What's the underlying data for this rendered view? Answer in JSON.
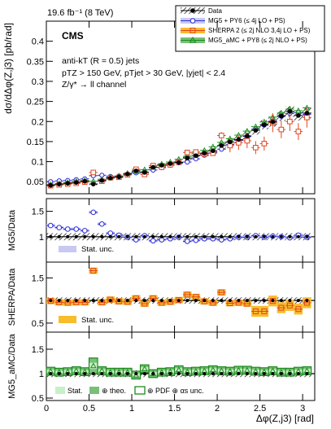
{
  "lumi_label": "19.6 fb⁻¹ (8 TeV)",
  "cms_label": "CMS",
  "text_lines": [
    "anti-kT (R = 0.5) jets",
    "pTZ > 150 GeV, pTjet > 30 GeV, |yjet| < 2.4",
    "Z/γ* → ll channel"
  ],
  "legend": {
    "data": "Data",
    "mg5": "MG5 + PY6 (≤ 4j LO + PS)",
    "sherpa": "SHERPA 2 (≤ 2j NLO 3,4j LO + PS)",
    "amc": "MG5_aMC + PY8 (≤ 2j NLO + PS)"
  },
  "colors": {
    "data": "#000000",
    "mg5": "#2b2bd6",
    "mg5_band": "#c8c8f2",
    "sherpa": "#e2451e",
    "sherpa_band": "#f7bd2c",
    "amc": "#1c8a1c",
    "amc_stat": "#c8f0c8",
    "amc_theo": "#78c078"
  },
  "chart_data": [
    {
      "type": "scatter",
      "xlabel": "",
      "ylabel": "dσ/dΔφ(Z,j3) [pb/rad]",
      "ylim": [
        0.02,
        0.45
      ],
      "xlim": [
        0,
        3.14159
      ],
      "yticks": [
        "0.05",
        "0.1",
        "0.15",
        "0.2",
        "0.25",
        "0.3",
        "0.35",
        "0.4"
      ],
      "x": [
        0.05,
        0.15,
        0.25,
        0.35,
        0.45,
        0.55,
        0.65,
        0.75,
        0.85,
        0.95,
        1.05,
        1.15,
        1.25,
        1.35,
        1.45,
        1.55,
        1.65,
        1.75,
        1.85,
        1.95,
        2.05,
        2.15,
        2.25,
        2.35,
        2.45,
        2.55,
        2.65,
        2.75,
        2.85,
        2.95,
        3.05
      ],
      "series": [
        {
          "name": "Data",
          "values": [
            0.041,
            0.044,
            0.046,
            0.048,
            0.051,
            0.044,
            0.053,
            0.059,
            0.062,
            0.069,
            0.077,
            0.073,
            0.086,
            0.091,
            0.095,
            0.098,
            0.109,
            0.115,
            0.121,
            0.127,
            0.14,
            0.149,
            0.155,
            0.164,
            0.178,
            0.192,
            0.199,
            0.214,
            0.225,
            0.215,
            0.221
          ]
        },
        {
          "name": "MG5 + PY6 (≤ 4j LO + PS)",
          "values": [
            0.05,
            0.052,
            0.053,
            0.055,
            0.057,
            0.065,
            0.066,
            0.063,
            0.064,
            0.068,
            0.072,
            0.074,
            0.079,
            0.085,
            0.091,
            0.097,
            0.099,
            0.107,
            0.116,
            0.122,
            0.131,
            0.143,
            0.153,
            0.163,
            0.181,
            0.191,
            0.201,
            0.213,
            0.22,
            0.222,
            0.218
          ]
        },
        {
          "name": "SHERPA 2 (≤ 2j NLO 3,4j LO + PS)",
          "values": [
            0.04,
            0.042,
            0.044,
            0.046,
            0.049,
            0.073,
            0.051,
            0.06,
            0.061,
            0.067,
            0.081,
            0.068,
            0.09,
            0.086,
            0.092,
            0.099,
            0.123,
            0.124,
            0.119,
            0.121,
            0.165,
            0.14,
            0.147,
            0.152,
            0.135,
            0.145,
            0.197,
            0.18,
            0.2,
            0.175,
            0.21
          ]
        },
        {
          "name": "MG5_aMC + PY8 (≤ 2j NLO + PS)",
          "values": [
            0.043,
            0.045,
            0.048,
            0.051,
            0.053,
            0.051,
            0.056,
            0.061,
            0.064,
            0.071,
            0.075,
            0.08,
            0.086,
            0.094,
            0.099,
            0.106,
            0.113,
            0.121,
            0.128,
            0.137,
            0.148,
            0.157,
            0.166,
            0.176,
            0.187,
            0.199,
            0.211,
            0.221,
            0.231,
            0.227,
            0.234
          ]
        }
      ]
    },
    {
      "type": "scatter",
      "ylabel": "MG5/Data",
      "ylim": [
        0.5,
        1.75
      ],
      "yticks": [
        "0.5",
        "1",
        "1.5"
      ],
      "band_label": "Stat. unc.",
      "values": [
        1.22,
        1.18,
        1.15,
        1.15,
        1.12,
        1.48,
        1.25,
        1.07,
        1.03,
        0.99,
        0.94,
        1.02,
        0.92,
        0.94,
        0.96,
        0.99,
        0.91,
        0.93,
        0.96,
        0.96,
        0.94,
        0.96,
        0.99,
        0.99,
        1.02,
        0.99,
        1.01,
        1.0,
        0.98,
        1.03,
        0.99
      ]
    },
    {
      "type": "bar",
      "ylabel": "SHERPA/Data",
      "ylim": [
        0.3,
        1.85
      ],
      "yticks": [
        "0.5",
        "1",
        "1.5"
      ],
      "band_label": "Stat. unc.",
      "values": [
        0.99,
        0.96,
        0.95,
        0.96,
        0.96,
        1.66,
        0.96,
        1.02,
        0.98,
        0.97,
        1.05,
        0.93,
        1.05,
        0.95,
        0.97,
        1.01,
        1.13,
        1.08,
        0.98,
        0.95,
        1.18,
        0.94,
        0.95,
        0.93,
        0.76,
        0.76,
        0.99,
        0.84,
        0.89,
        0.81,
        0.95
      ]
    },
    {
      "type": "bar",
      "ylabel": "MG5_aMC/Data",
      "ylim": [
        0.45,
        1.85
      ],
      "yticks": [
        "0.5",
        "1",
        "1.5"
      ],
      "legend_stat": "Stat.",
      "legend_theo": "⊕ theo.",
      "legend_pdf": "⊕ PDF ⊕ αs unc.",
      "xlabel": "Δφ(Z,j3) [rad]",
      "xticks": [
        "0",
        "0.5",
        "1",
        "1.5",
        "2",
        "2.5",
        "3"
      ],
      "values": [
        1.05,
        1.03,
        1.04,
        1.06,
        1.04,
        1.16,
        1.06,
        1.03,
        1.03,
        1.03,
        0.97,
        1.1,
        1.0,
        1.03,
        1.04,
        1.08,
        1.04,
        1.05,
        1.06,
        1.08,
        1.06,
        1.05,
        1.07,
        1.07,
        1.05,
        1.04,
        1.06,
        1.03,
        1.03,
        1.05,
        1.06
      ]
    }
  ]
}
